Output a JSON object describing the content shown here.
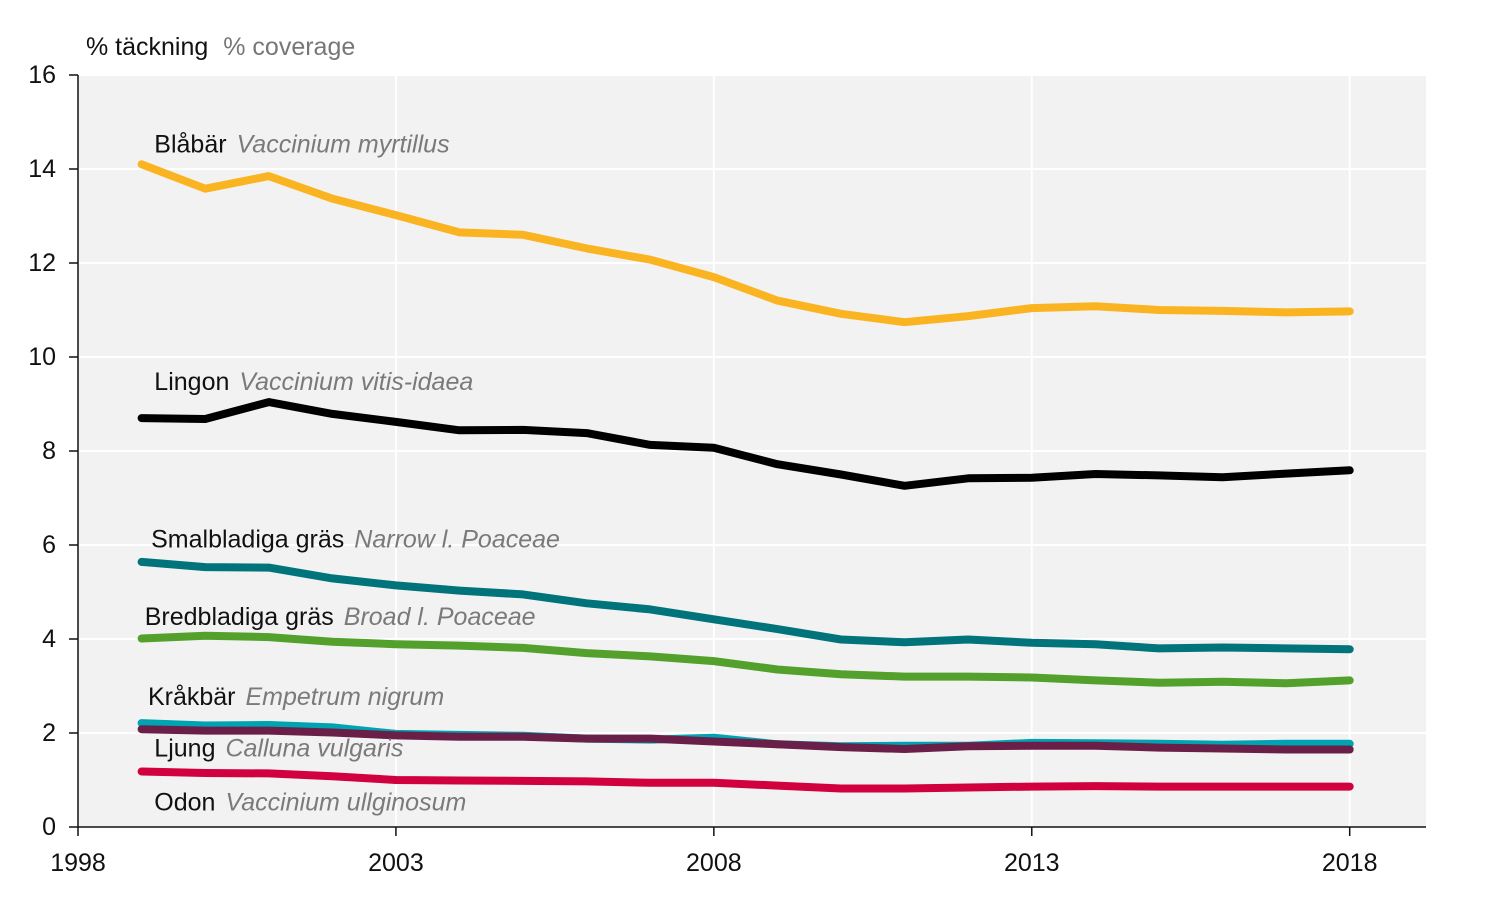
{
  "chart_data": {
    "type": "line",
    "ylabel": {
      "main": "% täckning",
      "sub": "% coverage"
    },
    "xlim": [
      1998,
      2019.2
    ],
    "ylim": [
      0,
      16
    ],
    "xticks": [
      {
        "value": 1998,
        "label": "1998"
      },
      {
        "value": 2003,
        "label": "2003"
      },
      {
        "value": 2008,
        "label": "2008"
      },
      {
        "value": 2013,
        "label": "2013"
      },
      {
        "value": 2018,
        "label": "2018"
      }
    ],
    "yticks": [
      {
        "value": 0,
        "label": "0"
      },
      {
        "value": 2,
        "label": "2"
      },
      {
        "value": 4,
        "label": "4"
      },
      {
        "value": 6,
        "label": "6"
      },
      {
        "value": 8,
        "label": "8"
      },
      {
        "value": 10,
        "label": "10"
      },
      {
        "value": 12,
        "label": "12"
      },
      {
        "value": 14,
        "label": "14"
      },
      {
        "value": 16,
        "label": "16"
      }
    ],
    "grid": true,
    "x": [
      1999,
      2000,
      2001,
      2002,
      2003,
      2004,
      2005,
      2006,
      2007,
      2008,
      2009,
      2010,
      2011,
      2012,
      2013,
      2014,
      2015,
      2016,
      2017,
      2018
    ],
    "series": [
      {
        "key": "blabar",
        "name": "Blåbär",
        "latin": "Vaccinium myrtillus",
        "color": "#fbb421",
        "label_at": {
          "x": 1999.2,
          "y": 14.35
        },
        "values": [
          14.1,
          13.58,
          13.85,
          13.37,
          13.02,
          12.65,
          12.6,
          12.31,
          12.07,
          11.7,
          11.2,
          10.92,
          10.74,
          10.87,
          11.04,
          11.08,
          11.0,
          10.98,
          10.95,
          10.97
        ]
      },
      {
        "key": "lingon",
        "name": "Lingon",
        "latin": "Vaccinium vitis-idaea",
        "color": "#000000",
        "label_at": {
          "x": 1999.2,
          "y": 9.3
        },
        "values": [
          8.7,
          8.68,
          9.04,
          8.79,
          8.62,
          8.44,
          8.45,
          8.38,
          8.13,
          8.07,
          7.72,
          7.5,
          7.26,
          7.42,
          7.43,
          7.51,
          7.48,
          7.44,
          7.52,
          7.59
        ]
      },
      {
        "key": "smalbladiga",
        "name": "Smalbladiga gräs",
        "latin": "Narrow l. Poaceae",
        "color": "#00737b",
        "label_at": {
          "x": 1999.15,
          "y": 5.95
        },
        "values": [
          5.64,
          5.53,
          5.52,
          5.29,
          5.14,
          5.03,
          4.95,
          4.76,
          4.63,
          4.42,
          4.21,
          3.99,
          3.93,
          3.99,
          3.92,
          3.89,
          3.8,
          3.82,
          3.8,
          3.78
        ]
      },
      {
        "key": "bredbladiga",
        "name": "Bredbladiga gräs",
        "latin": "Broad l. Poaceae",
        "color": "#53a02c",
        "label_at": {
          "x": 1999.05,
          "y": 4.3
        },
        "values": [
          4.01,
          4.07,
          4.04,
          3.94,
          3.89,
          3.86,
          3.81,
          3.7,
          3.63,
          3.53,
          3.35,
          3.25,
          3.2,
          3.2,
          3.18,
          3.12,
          3.07,
          3.09,
          3.06,
          3.12
        ]
      },
      {
        "key": "krakbar",
        "name": "Kråkbär",
        "latin": "Empetrum nigrum",
        "color": "#00a3b1",
        "label_at": {
          "x": 1999.1,
          "y": 2.6
        },
        "values": [
          2.21,
          2.16,
          2.17,
          2.12,
          1.98,
          1.96,
          1.94,
          1.88,
          1.86,
          1.9,
          1.76,
          1.72,
          1.73,
          1.73,
          1.79,
          1.78,
          1.77,
          1.75,
          1.77,
          1.77
        ]
      },
      {
        "key": "ljung",
        "name": "Ljung",
        "latin": "Calluna vulgaris",
        "color": "#6a1f48",
        "label_at": {
          "x": 1999.2,
          "y": 1.5
        },
        "values": [
          2.08,
          2.05,
          2.05,
          2.01,
          1.95,
          1.92,
          1.92,
          1.88,
          1.88,
          1.82,
          1.76,
          1.7,
          1.66,
          1.72,
          1.73,
          1.73,
          1.69,
          1.67,
          1.65,
          1.65
        ]
      },
      {
        "key": "odon",
        "name": "Odon",
        "latin": "Vaccinium ullginosum",
        "color": "#d1003f",
        "label_at": {
          "x": 1999.2,
          "y": 0.35
        },
        "values": [
          1.18,
          1.15,
          1.14,
          1.08,
          1.0,
          0.99,
          0.98,
          0.97,
          0.94,
          0.94,
          0.88,
          0.82,
          0.82,
          0.84,
          0.86,
          0.87,
          0.86,
          0.86,
          0.86,
          0.86
        ]
      }
    ]
  }
}
